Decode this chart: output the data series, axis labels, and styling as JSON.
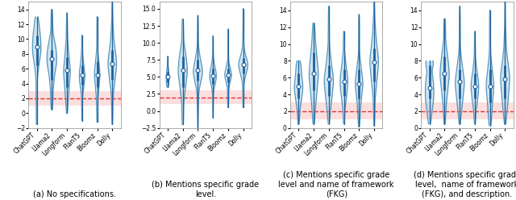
{
  "subplot_captions": [
    "(a) No specifications.",
    "(b) Mentions specific grade\nlevel.",
    "(c) Mentions specific grade\nlevel and name of framework\n(FKG)",
    "(d) Mentions specific grade\nlevel,  name of framework\n(FKG), and description."
  ],
  "x_labels": [
    "ChatGPT",
    "Llama2",
    "Longform",
    "FlanT5",
    "Bloomz",
    "Dolly"
  ],
  "red_line_y": 2.0,
  "red_band_lo": 1.0,
  "red_band_hi": 3.0,
  "subplots": [
    {
      "ylim": [
        -2,
        15
      ],
      "yticks": [
        -2,
        0,
        2,
        4,
        6,
        8,
        10,
        12,
        14
      ],
      "medians": [
        9.0,
        7.3,
        5.8,
        5.1,
        5.2,
        6.7
      ],
      "q1": [
        6.5,
        4.5,
        3.5,
        3.8,
        3.5,
        4.5
      ],
      "q3": [
        10.5,
        8.5,
        7.5,
        6.5,
        7.0,
        8.5
      ],
      "whisker_lo": [
        -1.5,
        0.5,
        0.0,
        -1.0,
        -1.2,
        -1.5
      ],
      "whisker_hi": [
        13.0,
        14.0,
        13.5,
        10.5,
        13.0,
        15.0
      ],
      "vw": [
        0.28,
        0.32,
        0.22,
        0.18,
        0.18,
        0.28
      ]
    },
    {
      "ylim": [
        -2.5,
        16
      ],
      "yticks": [
        -2.5,
        0.0,
        2.5,
        5.0,
        7.5,
        10.0,
        12.5,
        15.0
      ],
      "medians": [
        5.0,
        6.0,
        6.0,
        5.2,
        5.3,
        6.8
      ],
      "q1": [
        4.2,
        3.5,
        4.5,
        4.0,
        4.2,
        5.5
      ],
      "q3": [
        5.8,
        8.0,
        7.5,
        6.2,
        6.2,
        7.8
      ],
      "whisker_lo": [
        3.5,
        -2.0,
        -2.5,
        -1.0,
        0.5,
        0.5
      ],
      "whisker_hi": [
        8.0,
        13.5,
        14.0,
        11.0,
        12.0,
        15.0
      ],
      "vw": [
        0.1,
        0.3,
        0.3,
        0.22,
        0.22,
        0.3
      ]
    },
    {
      "ylim": [
        0,
        15
      ],
      "yticks": [
        0,
        2,
        4,
        6,
        8,
        10,
        12,
        14
      ],
      "medians": [
        5.0,
        6.5,
        5.8,
        5.5,
        5.3,
        7.8
      ],
      "q1": [
        3.5,
        4.5,
        3.8,
        3.8,
        3.5,
        5.5
      ],
      "q3": [
        6.5,
        9.0,
        7.5,
        7.0,
        7.0,
        9.5
      ],
      "whisker_lo": [
        0.5,
        0.5,
        0.5,
        0.5,
        0.2,
        0.3
      ],
      "whisker_hi": [
        8.0,
        12.5,
        14.5,
        11.5,
        13.5,
        15.0
      ],
      "vw": [
        0.28,
        0.3,
        0.3,
        0.25,
        0.25,
        0.28
      ]
    },
    {
      "ylim": [
        0,
        15
      ],
      "yticks": [
        0,
        2,
        4,
        6,
        8,
        10,
        12,
        14
      ],
      "medians": [
        4.8,
        6.5,
        5.5,
        5.0,
        5.0,
        5.8
      ],
      "q1": [
        3.5,
        4.5,
        3.5,
        3.5,
        3.0,
        3.5
      ],
      "q3": [
        7.5,
        8.5,
        7.0,
        6.5,
        7.0,
        7.5
      ],
      "whisker_lo": [
        0.5,
        0.5,
        0.5,
        0.5,
        0.3,
        0.5
      ],
      "whisker_hi": [
        8.0,
        13.0,
        14.5,
        11.5,
        14.0,
        15.0
      ],
      "vw": [
        0.28,
        0.3,
        0.3,
        0.25,
        0.25,
        0.3
      ]
    }
  ],
  "violin_face_color": "#a8cfe0",
  "violin_edge_color": "#3a87b3",
  "violin_edge_lw": 0.9,
  "violin_alpha": 0.55,
  "red_line_color": "#e83030",
  "red_band_color": "#f5b0b0",
  "red_band_alpha": 0.4,
  "whisker_color": "#2060a0",
  "whisker_lw": 0.9,
  "median_color": "#2060a0",
  "median_size": 3.5,
  "bg_color": "#ffffff",
  "tick_fontsize": 5.5,
  "label_fontsize": 5.5,
  "caption_fontsize": 7.0,
  "figsize": [
    6.4,
    2.48
  ],
  "dpi": 100
}
